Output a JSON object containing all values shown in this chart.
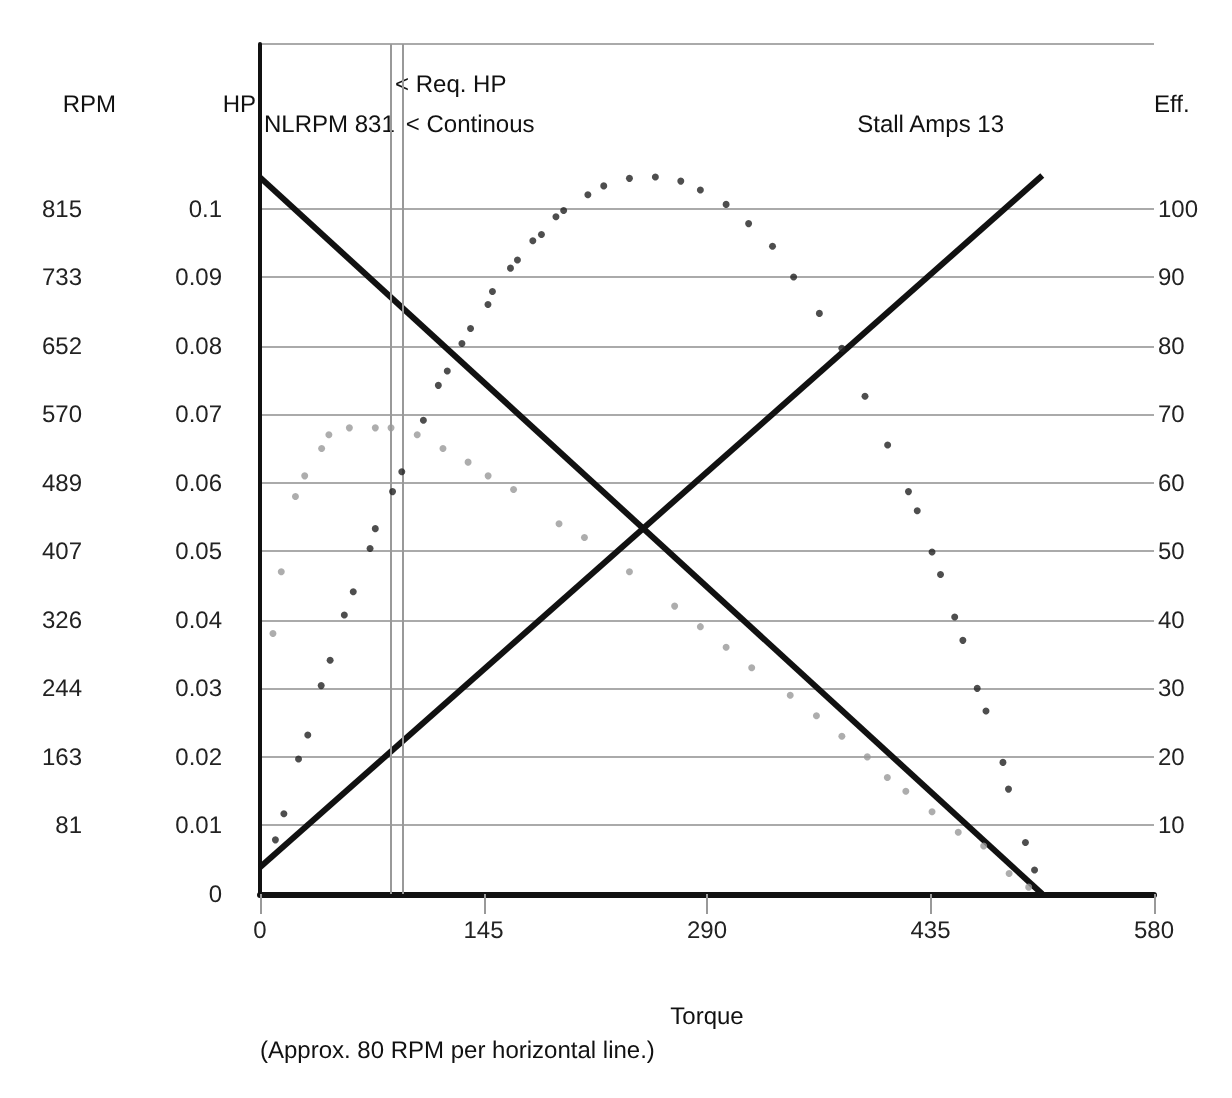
{
  "chart_data": {
    "type": "line",
    "xlabel": "Torque",
    "ylabel": "HP",
    "y2label": "Eff.",
    "y3label": "RPM",
    "xlim": [
      0,
      580
    ],
    "xticks": [
      0,
      145,
      290,
      435,
      580
    ],
    "ylim": [
      0,
      0.124
    ],
    "yticks": [
      0,
      0.01,
      0.02,
      0.03,
      0.04,
      0.05,
      0.06,
      0.07,
      0.08,
      0.09,
      0.1
    ],
    "y2lim": [
      0,
      124
    ],
    "y2ticks": [
      10,
      20,
      30,
      40,
      50,
      60,
      70,
      80,
      90,
      100
    ],
    "y3lim": [
      0,
      1010.6
    ],
    "y3ticks": [
      {
        "value": 81.5,
        "label": "81"
      },
      163,
      {
        "value": 244.5,
        "label": "244"
      },
      326,
      {
        "value": 407.5,
        "label": "407"
      },
      489,
      {
        "value": 570.5,
        "label": "570"
      },
      652,
      {
        "value": 733.5,
        "label": "733"
      },
      815
    ],
    "grid": "y",
    "series": [
      {
        "type": "line",
        "color": "#111111",
        "axis": "y3",
        "x": [
          0,
          507.5
        ],
        "values": [
          852,
          0
        ]
      },
      {
        "type": "line",
        "color": "#111111",
        "axis": "y2",
        "x": [
          0,
          507.5
        ],
        "values": [
          3.9,
          104.8
        ]
      },
      {
        "type": "scatter",
        "color": "#222222",
        "axis": "y2",
        "x": [
          10,
          15.5,
          25,
          31,
          39.7,
          45.5,
          54.7,
          60.5,
          71.4,
          74.8,
          86,
          92,
          106,
          115.7,
          121.5,
          131,
          136.6,
          147.9,
          150.8,
          162.5,
          167,
          177,
          182.6,
          192,
          197,
          212.7,
          223,
          239.7,
          256.5,
          273,
          285.7,
          302.4,
          317,
          332.5,
          346.2,
          362.9,
          377.5,
          392.5,
          407.2,
          420.7,
          426.4,
          436,
          441.5,
          450.7,
          456,
          465.3,
          471,
          482,
          485.6,
          496.6,
          502.5
        ],
        "values": [
          7.9,
          11.7,
          19.7,
          23.2,
          30.4,
          34.1,
          40.7,
          44.1,
          50.4,
          53.3,
          58.7,
          61.6,
          69.1,
          74.2,
          76.3,
          80.3,
          82.5,
          86,
          87.9,
          91.3,
          92.5,
          95.3,
          96.2,
          98.8,
          99.7,
          102,
          103.3,
          104.4,
          104.6,
          104,
          102.7,
          100.6,
          97.8,
          94.5,
          90,
          84.7,
          79.6,
          72.6,
          65.5,
          58.7,
          55.9,
          49.9,
          46.6,
          40.4,
          37,
          30,
          26.7,
          19.2,
          15.3,
          7.5,
          3.5
        ]
      },
      {
        "type": "scatter",
        "color": "#999999",
        "x": [
          8.4,
          13.8,
          23,
          29,
          40,
          44.7,
          58,
          74.8,
          85,
          102,
          118.7,
          135,
          148,
          164.5,
          194,
          210.5,
          239.7,
          269,
          285.7,
          302.4,
          319,
          344,
          361,
          377.5,
          394,
          407,
          419,
          436,
          453,
          469.5,
          486,
          498.7
        ],
        "values": [
          0.038,
          0.047,
          0.058,
          0.061,
          0.065,
          0.067,
          0.068,
          0.068,
          0.068,
          0.067,
          0.065,
          0.063,
          0.061,
          0.059,
          0.054,
          0.052,
          0.047,
          0.042,
          0.039,
          0.036,
          0.033,
          0.029,
          0.026,
          0.023,
          0.02,
          0.017,
          0.015,
          0.012,
          0.009,
          0.007,
          0.003,
          0.001
        ]
      }
    ],
    "ref_lines": [
      {
        "axis": "x",
        "value": 85,
        "label": "< Req. HP",
        "color": "#999999"
      },
      {
        "axis": "x",
        "value": 92,
        "label": "< Continous",
        "color": "#999999"
      }
    ],
    "annotations": [
      "NLRPM 831",
      "Stall Amps 13",
      "(Approx. 80 RPM per horizontal line.)"
    ]
  }
}
